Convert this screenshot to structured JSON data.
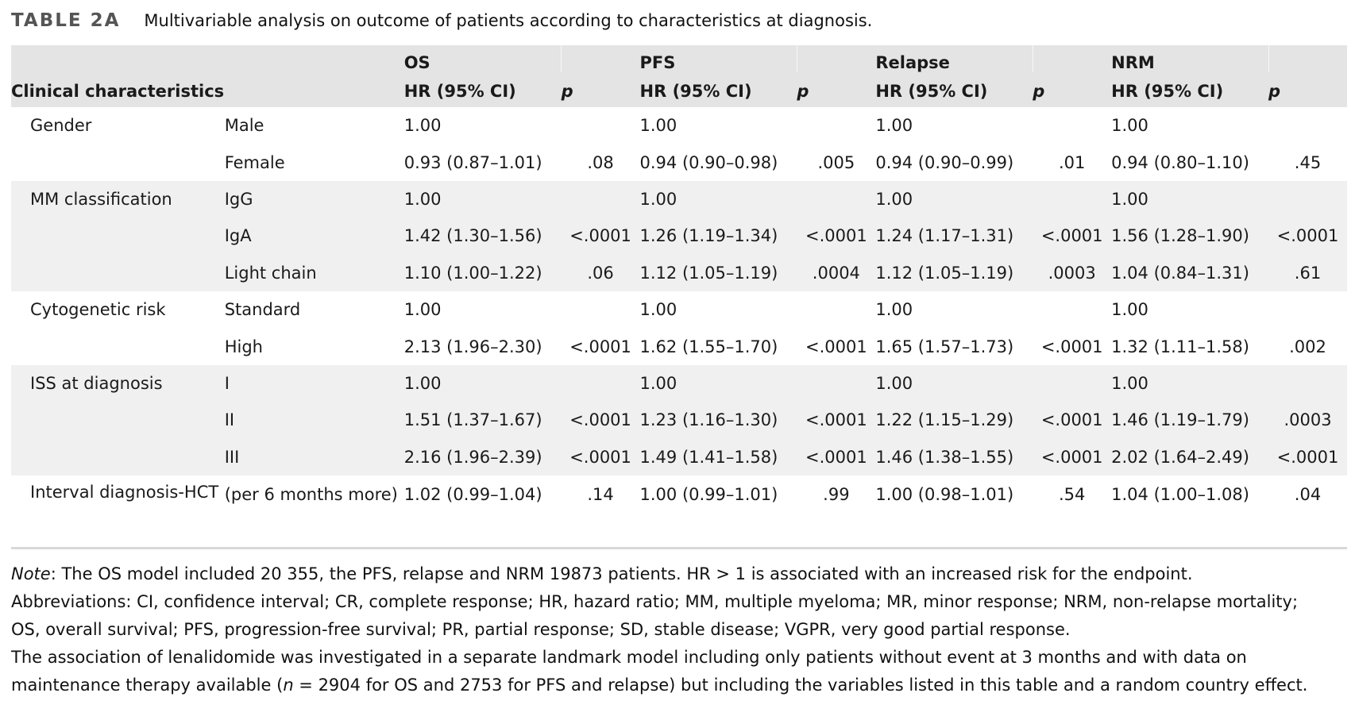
{
  "caption": {
    "label": "TABLE 2A",
    "title": "Multivariable analysis on outcome of patients according to characteristics at diagnosis."
  },
  "header": {
    "clinical": "Clinical characteristics",
    "endpoints": [
      "OS",
      "PFS",
      "Relapse",
      "NRM"
    ],
    "hr_label": "HR (95% CI)",
    "p_label": "p"
  },
  "rows": [
    {
      "cat": "Gender",
      "sub": "Male",
      "os": "1.00",
      "os_p": "",
      "pfs": "1.00",
      "pfs_p": "",
      "rel": "1.00",
      "rel_p": "",
      "nrm": "1.00",
      "nrm_p": ""
    },
    {
      "cat": "",
      "sub": "Female",
      "os": "0.93 (0.87–1.01)",
      "os_p": ".08",
      "pfs": "0.94 (0.90–0.98)",
      "pfs_p": ".005",
      "rel": "0.94 (0.90–0.99)",
      "rel_p": ".01",
      "nrm": "0.94 (0.80–1.10)",
      "nrm_p": ".45"
    },
    {
      "cat": "MM classification",
      "sub": "IgG",
      "os": "1.00",
      "os_p": "",
      "pfs": "1.00",
      "pfs_p": "",
      "rel": "1.00",
      "rel_p": "",
      "nrm": "1.00",
      "nrm_p": ""
    },
    {
      "cat": "",
      "sub": "IgA",
      "os": "1.42 (1.30–1.56)",
      "os_p": "<.0001",
      "pfs": "1.26 (1.19–1.34)",
      "pfs_p": "<.0001",
      "rel": "1.24 (1.17–1.31)",
      "rel_p": "<.0001",
      "nrm": "1.56 (1.28–1.90)",
      "nrm_p": "<.0001"
    },
    {
      "cat": "",
      "sub": "Light chain",
      "os": "1.10 (1.00–1.22)",
      "os_p": ".06",
      "pfs": "1.12 (1.05–1.19)",
      "pfs_p": ".0004",
      "rel": "1.12 (1.05–1.19)",
      "rel_p": ".0003",
      "nrm": "1.04 (0.84–1.31)",
      "nrm_p": ".61"
    },
    {
      "cat": "Cytogenetic risk",
      "sub": "Standard",
      "os": "1.00",
      "os_p": "",
      "pfs": "1.00",
      "pfs_p": "",
      "rel": "1.00",
      "rel_p": "",
      "nrm": "1.00",
      "nrm_p": ""
    },
    {
      "cat": "",
      "sub": "High",
      "os": "2.13 (1.96–2.30)",
      "os_p": "<.0001",
      "pfs": "1.62 (1.55–1.70)",
      "pfs_p": "<.0001",
      "rel": "1.65 (1.57–1.73)",
      "rel_p": "<.0001",
      "nrm": "1.32 (1.11–1.58)",
      "nrm_p": ".002"
    },
    {
      "cat": "ISS at diagnosis",
      "sub": "I",
      "os": "1.00",
      "os_p": "",
      "pfs": "1.00",
      "pfs_p": "",
      "rel": "1.00",
      "rel_p": "",
      "nrm": "1.00",
      "nrm_p": ""
    },
    {
      "cat": "",
      "sub": "II",
      "os": "1.51 (1.37–1.67)",
      "os_p": "<.0001",
      "pfs": "1.23 (1.16–1.30)",
      "pfs_p": "<.0001",
      "rel": "1.22 (1.15–1.29)",
      "rel_p": "<.0001",
      "nrm": "1.46 (1.19–1.79)",
      "nrm_p": ".0003"
    },
    {
      "cat": "",
      "sub": "III",
      "os": "2.16 (1.96–2.39)",
      "os_p": "<.0001",
      "pfs": "1.49 (1.41–1.58)",
      "pfs_p": "<.0001",
      "rel": "1.46 (1.38–1.55)",
      "rel_p": "<.0001",
      "nrm": "2.02 (1.64–2.49)",
      "nrm_p": "<.0001"
    },
    {
      "cat": "Interval diagnosis-HCT",
      "sub": "(per 6 months more)",
      "os": "1.02 (0.99–1.04)",
      "os_p": ".14",
      "pfs": "1.00 (0.99–1.01)",
      "pfs_p": ".99",
      "rel": "1.00 (0.98–1.01)",
      "rel_p": ".54",
      "nrm": "1.04 (1.00–1.08)",
      "nrm_p": ".04"
    }
  ],
  "notes": {
    "note_label": "Note",
    "note_text": ": The OS model included 20 355, the PFS, relapse and NRM 19873 patients. HR > 1 is associated with an increased risk for the endpoint.",
    "abbr_line1": "Abbreviations: CI, confidence interval; CR, complete response; HR, hazard ratio; MM, multiple myeloma; MR, minor response; NRM, non-relapse mortality;",
    "abbr_line2": "OS, overall survival; PFS, progression-free survival; PR, partial response; SD, stable disease; VGPR, very good partial response.",
    "assoc_line1": "The association of lenalidomide was investigated in a separate landmark model including only patients without event at 3 months and with data on",
    "assoc_pre": "maintenance therapy available (",
    "assoc_n": "n",
    "assoc_post": " = 2904 for OS and 2753 for PFS and relapse) but including the variables listed in this table and a random country effect."
  }
}
